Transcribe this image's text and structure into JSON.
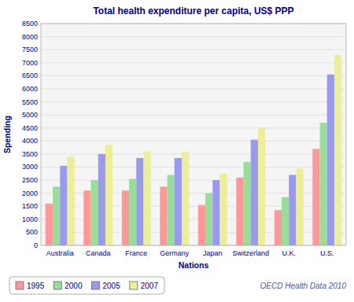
{
  "chart_data": {
    "type": "bar",
    "title": "Total health expenditure per capita, US$ PPP",
    "xlabel": "Nations",
    "ylabel": "Spending",
    "annotation": "OECD Health Data 2010",
    "categories": [
      "Australia",
      "Canada",
      "France",
      "Germany",
      "Japan",
      "Switzerland",
      "U.K.",
      "U.S."
    ],
    "series": [
      {
        "name": "1995",
        "color": "#FF9999",
        "values": [
          1600,
          2100,
          2100,
          2250,
          1550,
          2600,
          1350,
          3700
        ]
      },
      {
        "name": "2000",
        "color": "#99DD99",
        "values": [
          2250,
          2500,
          2550,
          2700,
          2000,
          3200,
          1850,
          4700
        ]
      },
      {
        "name": "2005",
        "color": "#9999EE",
        "values": [
          3050,
          3500,
          3350,
          3350,
          2500,
          4050,
          2700,
          6550
        ]
      },
      {
        "name": "2007",
        "color": "#EEEE99",
        "values": [
          3400,
          3850,
          3600,
          3600,
          2750,
          4500,
          2950,
          7300
        ]
      }
    ],
    "ylim": [
      0,
      8500
    ],
    "yticks": [
      0,
      500,
      1000,
      1500,
      2000,
      2500,
      3000,
      3500,
      4000,
      4500,
      5000,
      5500,
      6000,
      6500,
      7000,
      7500,
      8000,
      8500
    ],
    "grid": true,
    "legend": "bottom"
  }
}
